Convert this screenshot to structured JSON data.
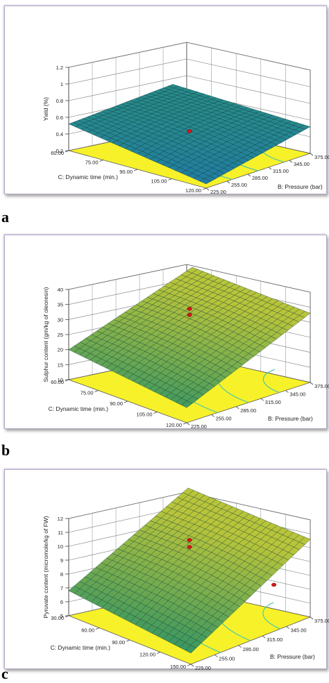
{
  "chart_data": [
    {
      "type": "surface3d",
      "letter": "a",
      "zlabel": "Yield (%)",
      "xlabel": "B: Pressure (bar)",
      "ylabel": "C: Dynamic time (min.)",
      "zticks": [
        "0.2",
        "0.4",
        "0.6",
        "0.8",
        "1",
        "1.2"
      ],
      "xticks": [
        "225.00",
        "255.00",
        "285.00",
        "315.00",
        "345.00",
        "375.00"
      ],
      "yticks": [
        "60.00",
        "75.00",
        "90.00",
        "105.00",
        "120.00"
      ],
      "surface_corners_z": {
        "near": 0.25,
        "left": 0.52,
        "right": 0.52,
        "back": 0.58
      },
      "design_point_z": [
        0.45
      ],
      "colors": {
        "low": "#1f7aa8",
        "high": "#2f9a72",
        "floor": "#f7f12a"
      }
    },
    {
      "type": "surface3d",
      "letter": "b",
      "zlabel": "Sulphur content (gm/kg of oleoresin)",
      "xlabel": "B: Pressure (bar)",
      "ylabel": "C: Dynamic time (min.)",
      "zticks": [
        "10",
        "15",
        "20",
        "25",
        "30",
        "35",
        "40"
      ],
      "xticks": [
        "225.00",
        "255.00",
        "285.00",
        "315.00",
        "345.00",
        "375.00"
      ],
      "yticks": [
        "60.00",
        "75.00",
        "90.00",
        "105.00",
        "120.00"
      ],
      "surface_corners_z": {
        "near": 15,
        "left": 20,
        "right": 33,
        "back": 34
      },
      "design_point_z": [
        34,
        32
      ],
      "colors": {
        "low": "#1f8c6a",
        "high": "#b8c43a",
        "floor": "#f7f12a"
      }
    },
    {
      "type": "surface3d",
      "letter": "c",
      "zlabel": "Pyruvate content (micromole/kg of FW)",
      "xlabel": "B: Pressure (bar)",
      "ylabel": "C: Dynamic time (min.)",
      "zticks": [
        "5",
        "6",
        "7",
        "8",
        "9",
        "10",
        "11",
        "12"
      ],
      "xticks": [
        "225.00",
        "255.00",
        "285.00",
        "315.00",
        "345.00",
        "375.00"
      ],
      "yticks": [
        "30.00",
        "60.00",
        "90.00",
        "120.00",
        "150.00"
      ],
      "surface_corners_z": {
        "near": 5.8,
        "left": 6.8,
        "right": 10.6,
        "back": 10.8
      },
      "design_point_z": [
        10.5,
        10.0,
        8.5
      ],
      "colors": {
        "low": "#1f8c6a",
        "high": "#b8c43a",
        "floor": "#f7f12a"
      }
    }
  ]
}
